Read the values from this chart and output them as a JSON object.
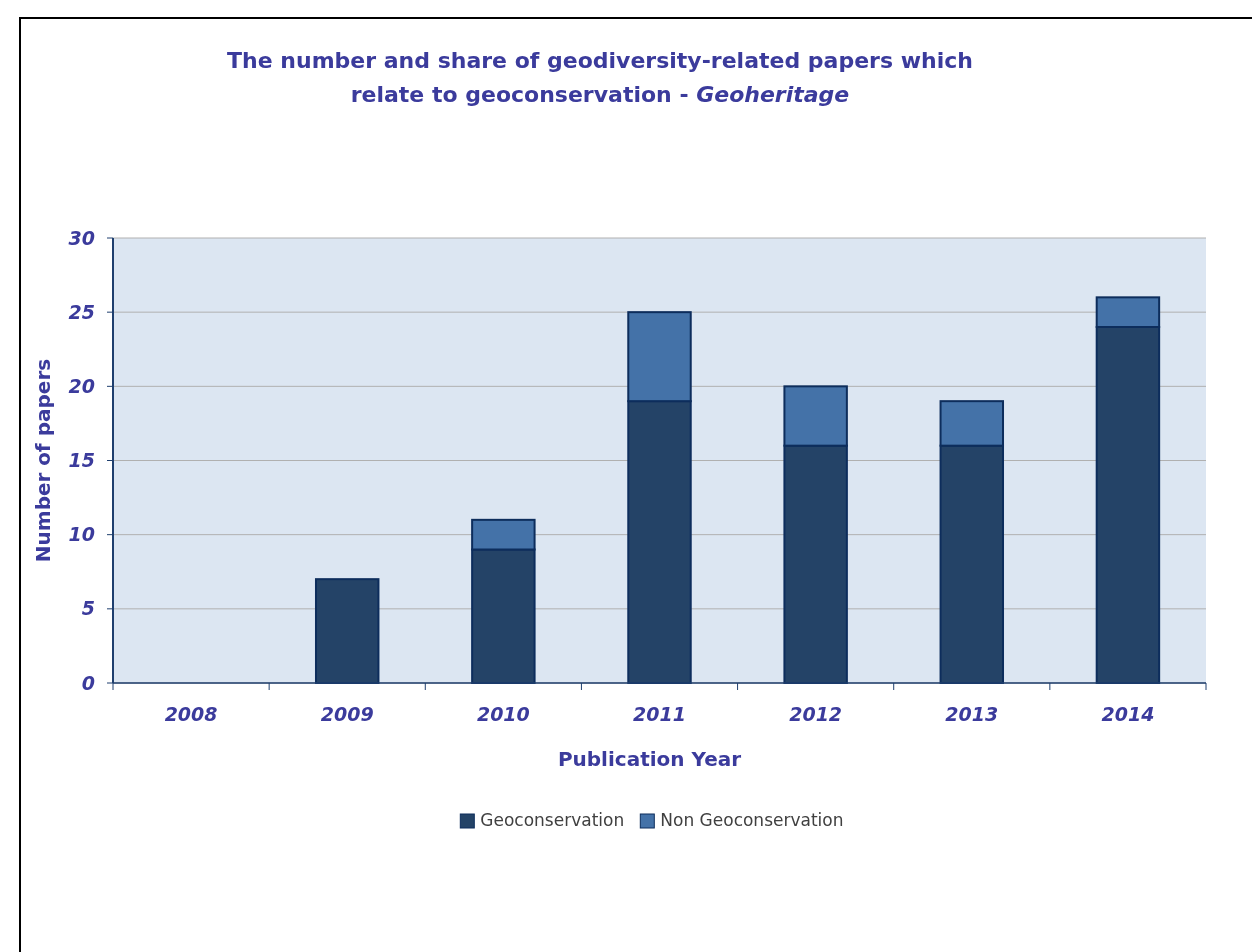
{
  "chart_data": {
    "type": "bar",
    "title": "The number and share of geodiversity-related papers which relate to geoconservation - Geoheritage",
    "xlabel": "Publication Year",
    "ylabel": "Number of papers",
    "categories": [
      "2008",
      "2009",
      "2010",
      "2011",
      "2012",
      "2013",
      "2014"
    ],
    "series": [
      {
        "name": "Geoconservation",
        "color": "#244367",
        "values": [
          0,
          7,
          9,
          19,
          16,
          16,
          24
        ]
      },
      {
        "name": "Non Geoconservation",
        "color": "#4472a8",
        "values": [
          0,
          0,
          2,
          6,
          4,
          3,
          2
        ]
      }
    ],
    "stacked": true,
    "ylim": [
      0,
      30
    ],
    "yticks": [
      0,
      5,
      10,
      15,
      20,
      25,
      30
    ],
    "grid": "y",
    "legend": "bottom"
  }
}
